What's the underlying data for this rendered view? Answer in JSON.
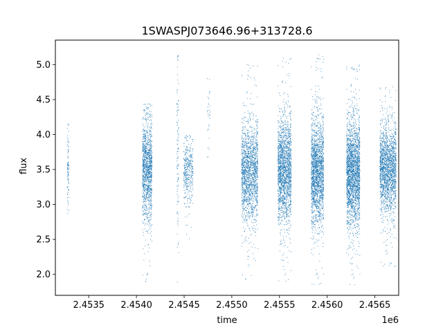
{
  "chart_data": {
    "type": "scatter",
    "title": "1SWASPJ073646.96+313728.6",
    "xlabel": "time",
    "ylabel": "flux",
    "x_offset_label": "1e6",
    "xlim": [
      2453150,
      2456750
    ],
    "ylim": [
      1.7,
      5.35
    ],
    "x_ticks": [
      2453500,
      2454000,
      2454500,
      2455000,
      2455500,
      2456000,
      2456500
    ],
    "x_tick_labels": [
      "2.4535",
      "2.4540",
      "2.4545",
      "2.4550",
      "2.4555",
      "2.4560",
      "2.4565"
    ],
    "y_ticks": [
      2.0,
      2.5,
      3.0,
      3.5,
      4.0,
      4.5,
      5.0
    ],
    "y_tick_labels": [
      "2.0",
      "2.5",
      "3.0",
      "3.5",
      "4.0",
      "4.5",
      "5.0"
    ],
    "grid": false,
    "marker_color": "#1f77b4",
    "series": [
      {
        "clusters": [
          {
            "x_range": [
              2453270,
              2453290
            ],
            "center": 3.55,
            "spread": 0.28,
            "min": 2.4,
            "max": 4.3,
            "count": 90
          },
          {
            "x_range": [
              2454060,
              2454160
            ],
            "center": 3.5,
            "spread": 0.32,
            "min": 1.9,
            "max": 4.45,
            "count": 1300
          },
          {
            "x_range": [
              2454420,
              2454440
            ],
            "center": 3.6,
            "spread": 0.7,
            "min": 1.85,
            "max": 5.15,
            "count": 110
          },
          {
            "x_range": [
              2454490,
              2454590
            ],
            "center": 3.5,
            "spread": 0.22,
            "min": 2.5,
            "max": 4.0,
            "count": 380
          },
          {
            "x_range": [
              2454740,
              2454770
            ],
            "center": 4.35,
            "spread": 0.35,
            "min": 3.5,
            "max": 4.95,
            "count": 30
          },
          {
            "x_range": [
              2455100,
              2455270
            ],
            "center": 3.45,
            "spread": 0.33,
            "min": 1.85,
            "max": 5.05,
            "count": 1700
          },
          {
            "x_range": [
              2455480,
              2455620
            ],
            "center": 3.5,
            "spread": 0.36,
            "min": 1.9,
            "max": 5.1,
            "count": 1900
          },
          {
            "x_range": [
              2455830,
              2455960
            ],
            "center": 3.45,
            "spread": 0.36,
            "min": 1.85,
            "max": 5.15,
            "count": 1900
          },
          {
            "x_range": [
              2456200,
              2456340
            ],
            "center": 3.45,
            "spread": 0.36,
            "min": 1.85,
            "max": 5.0,
            "count": 2300
          },
          {
            "x_range": [
              2456550,
              2456720
            ],
            "center": 3.5,
            "spread": 0.3,
            "min": 2.1,
            "max": 4.7,
            "count": 1900
          }
        ]
      }
    ]
  }
}
